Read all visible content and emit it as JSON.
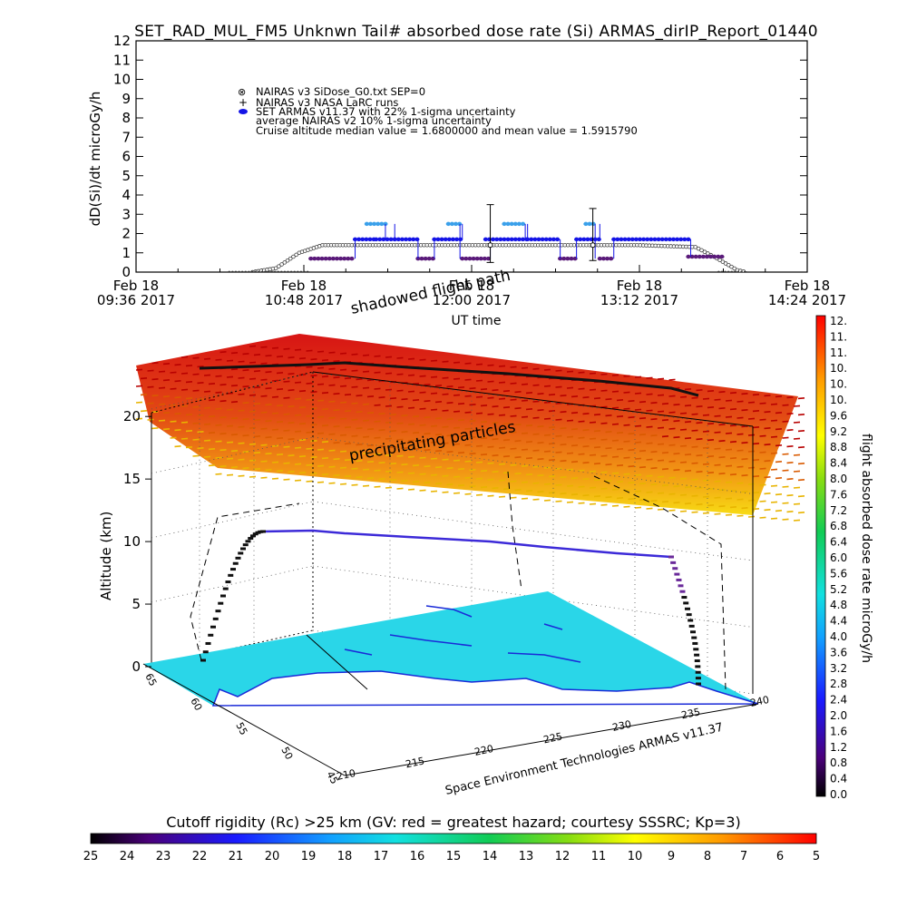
{
  "chart_data": [
    {
      "type": "line",
      "title": "SET_RAD_MUL_FM5 Unknwn Tail#  absorbed dose rate (Si) ARMAS_dirIP_Report_01440",
      "ylabel": "dD(Si)/dt microGy/h",
      "xlabel": "UT time",
      "ylim": [
        0,
        12
      ],
      "y_ticks": [
        "0",
        "1",
        "2",
        "3",
        "4",
        "5",
        "6",
        "7",
        "8",
        "9",
        "10",
        "11",
        "12"
      ],
      "x_ticks": [
        {
          "top": "Feb 18",
          "bottom": "09:36 2017"
        },
        {
          "top": "Feb 18",
          "bottom": "10:48 2017"
        },
        {
          "top": "Feb 18",
          "bottom": "12:00 2017"
        },
        {
          "top": "Feb 18",
          "bottom": "13:12 2017"
        },
        {
          "top": "Feb 18",
          "bottom": "14:24 2017"
        }
      ],
      "xlim_minutes_after_0936": [
        0,
        288
      ],
      "legend": [
        "NAIRAS v3 SiDose_G0.txt SEP=0",
        "NAIRAS v3 NASA LaRC runs",
        "SET ARMAS v11.37 with 22% 1-sigma uncertainty",
        "average NAIRAS v2 10% 1-sigma uncertainty",
        "Cruise altitude median value = 1.6800000 and mean value = 1.5915790"
      ],
      "series": [
        {
          "name": "NAIRAS v3 SiDose_G0.txt SEP=0",
          "color": "#333333",
          "x": [
            50,
            60,
            70,
            80,
            90,
            130,
            160,
            175,
            180,
            192,
            215,
            240,
            248,
            258,
            262
          ],
          "y": [
            0,
            0.2,
            1.0,
            1.4,
            1.4,
            1.4,
            1.4,
            1.4,
            1.4,
            1.4,
            1.4,
            1.3,
            0.8,
            0.1,
            0
          ]
        },
        {
          "name": "SET ARMAS v11.37 with 22% 1-sigma uncertainty",
          "color": "#1414e6",
          "segments": [
            {
              "x0": 75,
              "x1": 94,
              "y": 0.7,
              "color": "#5a1a7a"
            },
            {
              "x0": 94,
              "x1": 103,
              "y": 1.7
            },
            {
              "x0": 103,
              "x1": 111,
              "y": 1.7
            },
            {
              "x0": 99,
              "x1": 107,
              "y": 2.5,
              "color": "#3aa0ea"
            },
            {
              "x0": 111,
              "x1": 121,
              "y": 1.7
            },
            {
              "x0": 121,
              "x1": 128,
              "y": 0.7,
              "color": "#5a1a7a"
            },
            {
              "x0": 128,
              "x1": 140,
              "y": 1.7
            },
            {
              "x0": 134,
              "x1": 139,
              "y": 2.5,
              "color": "#3aa0ea"
            },
            {
              "x0": 140,
              "x1": 152,
              "y": 0.7,
              "color": "#5a1a7a"
            },
            {
              "x0": 150,
              "x1": 168,
              "y": 1.7
            },
            {
              "x0": 158,
              "x1": 167,
              "y": 2.5,
              "color": "#3aa0ea"
            },
            {
              "x0": 168,
              "x1": 182,
              "y": 1.7
            },
            {
              "x0": 182,
              "x1": 189,
              "y": 0.7,
              "color": "#5a1a7a"
            },
            {
              "x0": 189,
              "x1": 199,
              "y": 1.7
            },
            {
              "x0": 193,
              "x1": 197,
              "y": 2.5,
              "color": "#3aa0ea"
            },
            {
              "x0": 199,
              "x1": 205,
              "y": 0.7,
              "color": "#5a1a7a"
            },
            {
              "x0": 205,
              "x1": 238,
              "y": 1.7
            },
            {
              "x0": 237,
              "x1": 252,
              "y": 0.8,
              "color": "#5a1a7a"
            }
          ]
        },
        {
          "name": "average NAIRAS v2 10% 1-sigma uncertainty",
          "color": "#000000",
          "error_bars": [
            {
              "x": 152,
              "y": 1.4,
              "lo": 0.5,
              "hi": 3.5
            },
            {
              "x": 196,
              "y": 1.4,
              "lo": 0.6,
              "hi": 3.3
            }
          ]
        }
      ]
    },
    {
      "type": "heatmap",
      "kind": "3d-flight-path",
      "zlabel": "Altitude (km)",
      "z_ticks": [
        "0",
        "5",
        "10",
        "15",
        "20"
      ],
      "lat_ticks": [
        "65",
        "60",
        "55",
        "50",
        "45"
      ],
      "lon_ticks": [
        "210",
        "215",
        "220",
        "225",
        "230",
        "235",
        "240"
      ],
      "annotations": {
        "shadowed": "shadowed flight path",
        "precip": "precipitating particles",
        "credit": "Space Environment Technologies ARMAS v11.37"
      },
      "flight_altitude_km": [
        0,
        2,
        4,
        6,
        8,
        10,
        10.5,
        10.5,
        10.4,
        10.1,
        9.8,
        9.3,
        8.9,
        7,
        4,
        1,
        0
      ],
      "colorbar_right": {
        "label": "flight absorbed dose rate microGy/h",
        "ticks": [
          "12.",
          "11.",
          "11.",
          "10.",
          "10.",
          "10.",
          "9.6",
          "9.2",
          "8.8",
          "8.4",
          "8.0",
          "7.6",
          "7.2",
          "6.8",
          "6.4",
          "6.0",
          "5.6",
          "5.2",
          "4.8",
          "4.4",
          "4.0",
          "3.6",
          "3.2",
          "2.8",
          "2.4",
          "2.0",
          "1.6",
          "1.2",
          "0.8",
          "0.4",
          "0.0"
        ]
      },
      "colorbar_bottom": {
        "label": "Cutoff rigidity (Rc) >25 km (GV: red = greatest hazard; courtesy SSSRC; Kp=3)",
        "ticks": [
          "25",
          "24",
          "23",
          "22",
          "21",
          "20",
          "19",
          "18",
          "17",
          "16",
          "15",
          "14",
          "13",
          "12",
          "11",
          "10",
          "9",
          "8",
          "7",
          "6",
          "5"
        ]
      },
      "colors": {
        "ocean": "#2ad6e8",
        "land": "#ffffff",
        "flight_path": "#3c2ad8",
        "shadow_path": "#111111"
      }
    }
  ]
}
